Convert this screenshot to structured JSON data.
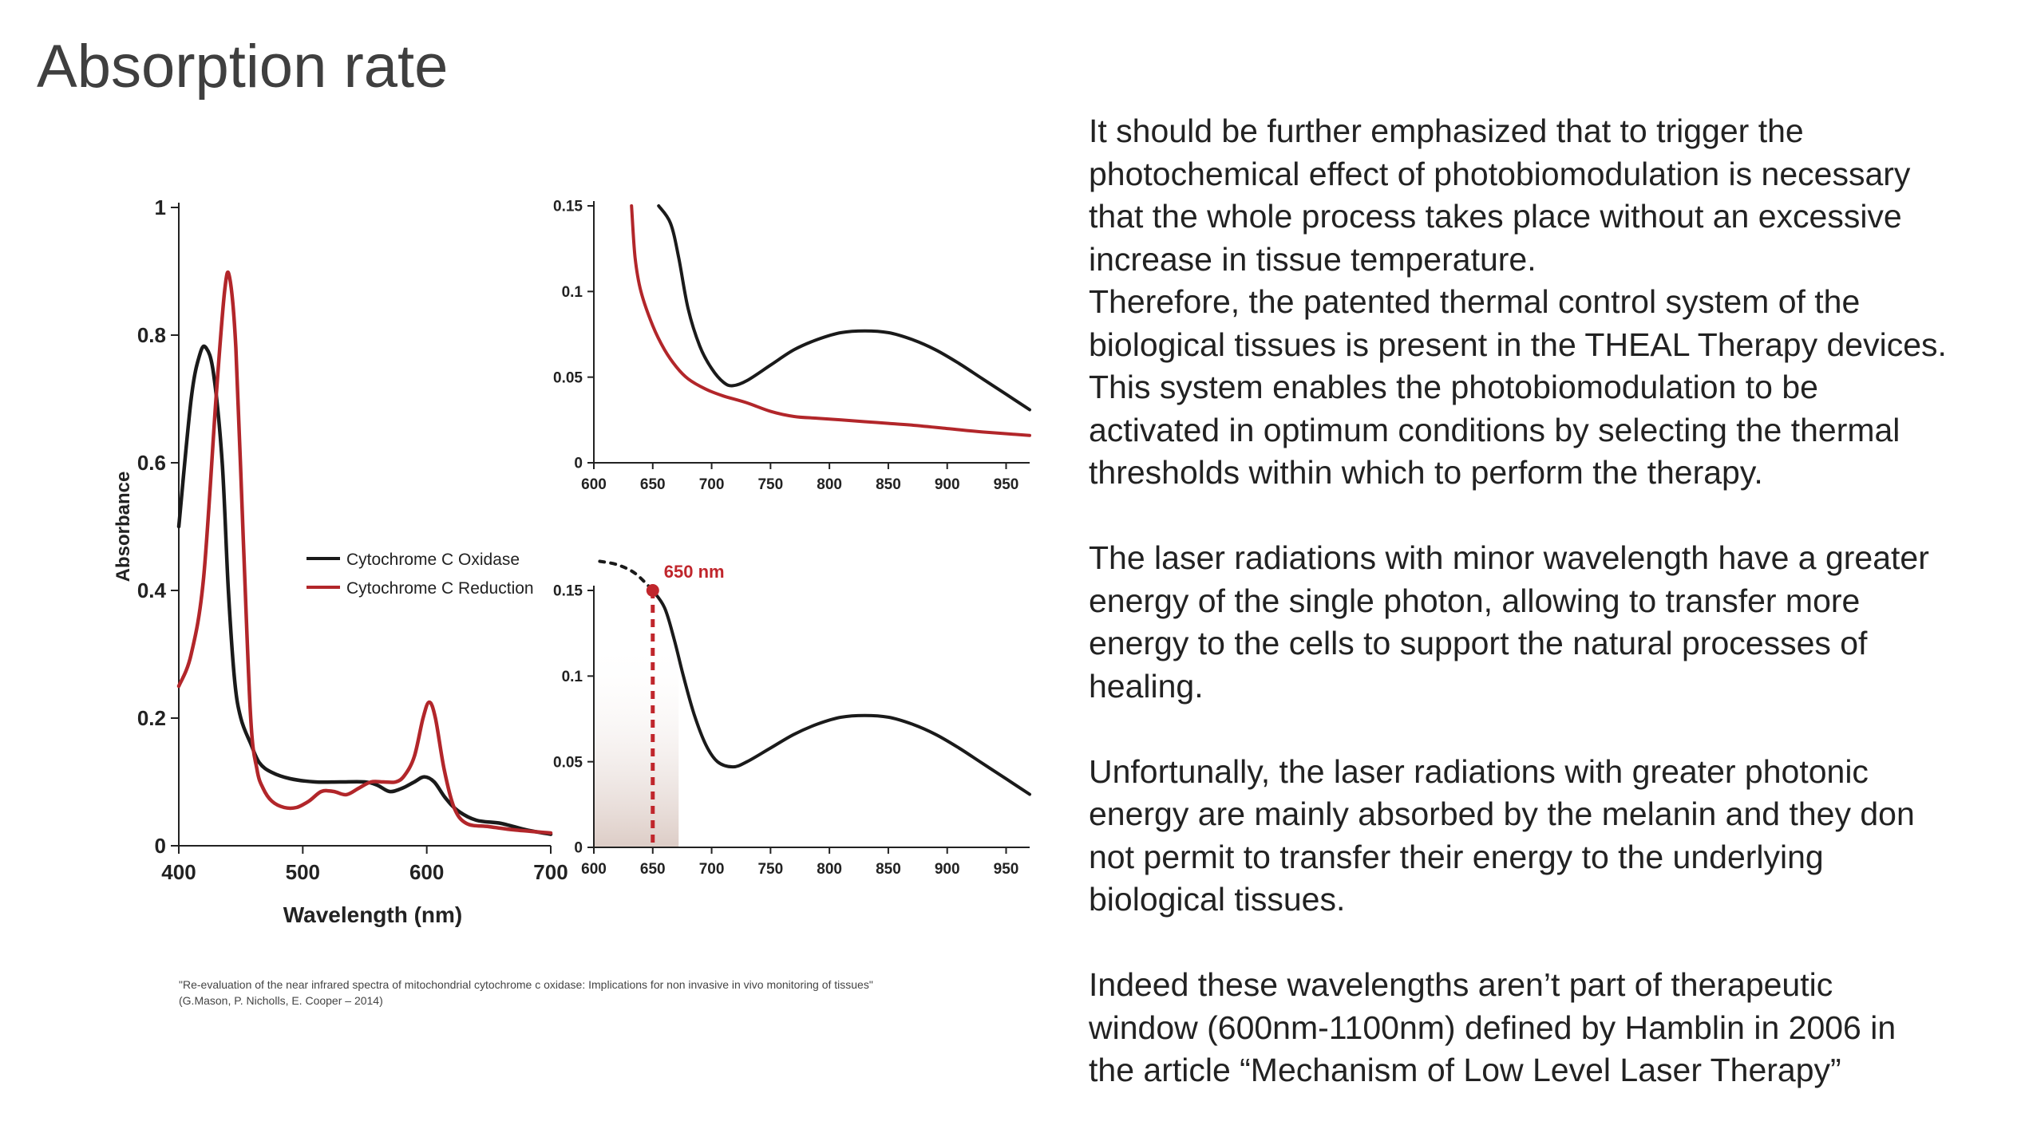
{
  "slide": {
    "title": "Absorption rate",
    "paragraphs": [
      "It should be further emphasized that to trigger the",
      "photochemical effect of photobiomodulation is necessary",
      "that the whole process takes place without an excessive",
      "increase in tissue temperature.",
      "Therefore, the patented thermal control system of the",
      "biological tissues is present in the THEAL Therapy devices.",
      "This system enables the photobiomodulation to be",
      "activated in optimum conditions by selecting the thermal",
      "thresholds within which to perform the therapy.",
      "",
      "The laser radiations with minor wavelength have a greater",
      "energy of the single photon, allowing to transfer more",
      "energy to the cells to support the natural processes of",
      "healing.",
      "",
      "Unfortunally, the laser radiations with greater photonic",
      "energy are mainly absorbed by the melanin and they don",
      "not permit to transfer their energy to the underlying",
      "biological tissues.",
      "",
      "Indeed these wavelengths aren’t part of therapeutic",
      "window (600nm-1100nm) defined by Hamblin in 2006 in",
      "the article “Mechanism of Low Level Laser Therapy”"
    ],
    "citation_line1": "\"Re-evaluation of the near infrared spectra of mitochondrial cytochrome c oxidase: Implications for non invasive in vivo monitoring of tissues\"",
    "citation_line2": "(G.Mason, P. Nicholls, E. Cooper – 2014)"
  },
  "chart_data": [
    {
      "type": "line",
      "xlabel": "Wavelength (nm)",
      "ylabel": "Absorbance",
      "xlim": [
        400,
        700
      ],
      "ylim": [
        0,
        1
      ],
      "xticks": [
        400,
        500,
        600,
        700
      ],
      "xtick_labels": [
        "400",
        "500",
        "600",
        "700"
      ],
      "yticks": [
        0,
        0.2,
        0.4,
        0.6,
        0.8,
        1
      ],
      "ytick_labels": [
        "0",
        "0.2",
        "0.4",
        "0.6",
        "0.8",
        "1"
      ],
      "legend_position": "center-right",
      "series": [
        {
          "name": "Cytochrome C Oxidase",
          "color": "#1a1a1a",
          "points": [
            [
              400,
              0.5
            ],
            [
              410,
              0.7
            ],
            [
              417,
              0.77
            ],
            [
              422,
              0.78
            ],
            [
              428,
              0.74
            ],
            [
              435,
              0.6
            ],
            [
              440,
              0.4
            ],
            [
              445,
              0.26
            ],
            [
              450,
              0.2
            ],
            [
              458,
              0.16
            ],
            [
              465,
              0.13
            ],
            [
              475,
              0.115
            ],
            [
              490,
              0.105
            ],
            [
              510,
              0.1
            ],
            [
              530,
              0.1
            ],
            [
              550,
              0.1
            ],
            [
              560,
              0.095
            ],
            [
              570,
              0.085
            ],
            [
              580,
              0.09
            ],
            [
              590,
              0.1
            ],
            [
              598,
              0.108
            ],
            [
              606,
              0.1
            ],
            [
              615,
              0.075
            ],
            [
              625,
              0.055
            ],
            [
              640,
              0.04
            ],
            [
              660,
              0.035
            ],
            [
              680,
              0.025
            ],
            [
              700,
              0.018
            ]
          ]
        },
        {
          "name": "Cytochrome C Reduction",
          "color": "#b2262a",
          "points": [
            [
              400,
              0.25
            ],
            [
              410,
              0.3
            ],
            [
              420,
              0.42
            ],
            [
              430,
              0.7
            ],
            [
              437,
              0.87
            ],
            [
              441,
              0.89
            ],
            [
              446,
              0.78
            ],
            [
              452,
              0.48
            ],
            [
              458,
              0.2
            ],
            [
              463,
              0.12
            ],
            [
              468,
              0.09
            ],
            [
              475,
              0.07
            ],
            [
              485,
              0.06
            ],
            [
              495,
              0.06
            ],
            [
              505,
              0.07
            ],
            [
              515,
              0.085
            ],
            [
              525,
              0.085
            ],
            [
              535,
              0.08
            ],
            [
              545,
              0.09
            ],
            [
              555,
              0.1
            ],
            [
              565,
              0.1
            ],
            [
              575,
              0.1
            ],
            [
              582,
              0.11
            ],
            [
              590,
              0.14
            ],
            [
              597,
              0.2
            ],
            [
              602,
              0.225
            ],
            [
              607,
              0.2
            ],
            [
              614,
              0.12
            ],
            [
              622,
              0.06
            ],
            [
              632,
              0.035
            ],
            [
              650,
              0.03
            ],
            [
              670,
              0.025
            ],
            [
              700,
              0.02
            ]
          ]
        }
      ]
    },
    {
      "type": "line",
      "xlim": [
        600,
        970
      ],
      "ylim": [
        0,
        0.15
      ],
      "xticks": [
        600,
        650,
        700,
        750,
        800,
        850,
        900,
        950
      ],
      "xtick_labels": [
        "600",
        "650",
        "700",
        "750",
        "800",
        "850",
        "900",
        "950"
      ],
      "yticks": [
        0,
        0.05,
        0.1,
        0.15
      ],
      "ytick_labels": [
        "0",
        "0.05",
        "0.1",
        "0.15"
      ],
      "series": [
        {
          "color": "#1a1a1a",
          "points": [
            [
              655,
              0.15
            ],
            [
              665,
              0.14
            ],
            [
              672,
              0.12
            ],
            [
              680,
              0.09
            ],
            [
              690,
              0.068
            ],
            [
              700,
              0.055
            ],
            [
              710,
              0.047
            ],
            [
              718,
              0.045
            ],
            [
              730,
              0.048
            ],
            [
              750,
              0.057
            ],
            [
              770,
              0.066
            ],
            [
              790,
              0.072
            ],
            [
              810,
              0.076
            ],
            [
              830,
              0.077
            ],
            [
              850,
              0.076
            ],
            [
              870,
              0.072
            ],
            [
              890,
              0.066
            ],
            [
              910,
              0.058
            ],
            [
              930,
              0.049
            ],
            [
              950,
              0.04
            ],
            [
              970,
              0.031
            ]
          ]
        },
        {
          "color": "#b2262a",
          "points": [
            [
              632,
              0.15
            ],
            [
              635,
              0.12
            ],
            [
              640,
              0.1
            ],
            [
              650,
              0.08
            ],
            [
              660,
              0.066
            ],
            [
              670,
              0.056
            ],
            [
              680,
              0.049
            ],
            [
              695,
              0.043
            ],
            [
              710,
              0.039
            ],
            [
              730,
              0.035
            ],
            [
              750,
              0.03
            ],
            [
              770,
              0.027
            ],
            [
              790,
              0.026
            ],
            [
              810,
              0.025
            ],
            [
              830,
              0.024
            ],
            [
              850,
              0.023
            ],
            [
              870,
              0.022
            ],
            [
              900,
              0.02
            ],
            [
              930,
              0.018
            ],
            [
              970,
              0.016
            ]
          ]
        }
      ]
    },
    {
      "type": "line",
      "xlim": [
        600,
        970
      ],
      "ylim": [
        0,
        0.15
      ],
      "xticks": [
        600,
        650,
        700,
        750,
        800,
        850,
        900,
        950
      ],
      "xtick_labels": [
        "600",
        "650",
        "700",
        "750",
        "800",
        "850",
        "900",
        "950"
      ],
      "yticks": [
        0,
        0.05,
        0.1,
        0.15
      ],
      "ytick_labels": [
        "0",
        "0.05",
        "0.1",
        "0.15"
      ],
      "annotation": {
        "label": "650 nm",
        "x": 650,
        "y": 0.15,
        "color": "#c0262c"
      },
      "series": [
        {
          "color": "#1a1a1a",
          "points": [
            [
              650,
              0.15
            ],
            [
              660,
              0.14
            ],
            [
              668,
              0.122
            ],
            [
              676,
              0.1
            ],
            [
              685,
              0.078
            ],
            [
              695,
              0.06
            ],
            [
              705,
              0.05
            ],
            [
              718,
              0.047
            ],
            [
              730,
              0.05
            ],
            [
              750,
              0.058
            ],
            [
              770,
              0.066
            ],
            [
              790,
              0.072
            ],
            [
              810,
              0.076
            ],
            [
              830,
              0.077
            ],
            [
              850,
              0.076
            ],
            [
              870,
              0.072
            ],
            [
              890,
              0.066
            ],
            [
              910,
              0.058
            ],
            [
              930,
              0.049
            ],
            [
              950,
              0.04
            ],
            [
              970,
              0.031
            ]
          ]
        },
        {
          "style": "dotted",
          "color": "#1a1a1a",
          "points": [
            [
              605,
              0.167
            ],
            [
              620,
              0.165
            ],
            [
              635,
              0.16
            ],
            [
              650,
              0.15
            ]
          ]
        }
      ]
    }
  ]
}
